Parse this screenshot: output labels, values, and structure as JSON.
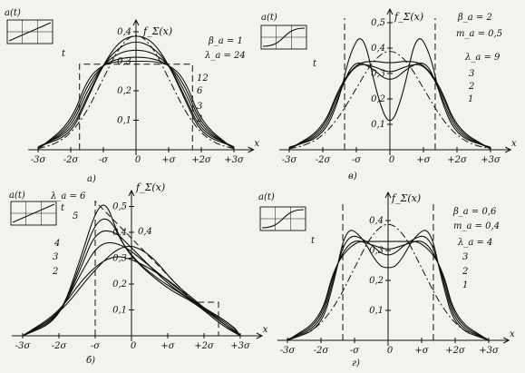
{
  "chart_data": [
    {
      "id": "a",
      "type": "line",
      "panel_label": "a)",
      "ylabel": "f_Σ(x)",
      "xlabel": "x",
      "inset": {
        "title": "a(t)",
        "xlabel": "t",
        "shape": "linear"
      },
      "param_labels": [
        "β_a = 1",
        "λ_a = 24"
      ],
      "series_labels": [
        "12",
        "6",
        "3",
        "2"
      ],
      "x_ticks": [
        "-3σ",
        "-2σ",
        "-σ",
        "0",
        "+σ",
        "+2σ",
        "+3σ"
      ],
      "y_ticks": [
        "0,1",
        "0,2",
        "0,3",
        "0,4"
      ],
      "xlim": [
        -3,
        3
      ],
      "ylim": [
        0,
        0.45
      ],
      "uniform": {
        "height": 0.29,
        "from": -1.73,
        "to": 1.73
      },
      "series": [
        {
          "label": "24",
          "x": [
            -3.0,
            -2.0,
            -1.5,
            -1.0,
            -0.5,
            0.0,
            0.5,
            1.0,
            1.5,
            2.0,
            3.0
          ],
          "y": [
            0.01,
            0.05,
            0.17,
            0.29,
            0.37,
            0.39,
            0.37,
            0.29,
            0.17,
            0.05,
            0.01
          ]
        },
        {
          "label": "12",
          "x": [
            -3.0,
            -2.0,
            -1.5,
            -1.0,
            -0.5,
            0.0,
            0.5,
            1.0,
            1.5,
            2.0,
            3.0
          ],
          "y": [
            0.01,
            0.06,
            0.18,
            0.29,
            0.35,
            0.37,
            0.35,
            0.29,
            0.18,
            0.06,
            0.01
          ]
        },
        {
          "label": "6",
          "x": [
            -3.0,
            -2.0,
            -1.5,
            -1.0,
            -0.5,
            0.0,
            0.5,
            1.0,
            1.5,
            2.0,
            3.0
          ],
          "y": [
            0.005,
            0.07,
            0.2,
            0.29,
            0.33,
            0.34,
            0.33,
            0.29,
            0.2,
            0.07,
            0.005
          ]
        },
        {
          "label": "3",
          "x": [
            -3.0,
            -2.0,
            -1.5,
            -1.0,
            -0.5,
            0.0,
            0.5,
            1.0,
            1.5,
            2.0,
            3.0
          ],
          "y": [
            0.003,
            0.08,
            0.22,
            0.29,
            0.31,
            0.315,
            0.31,
            0.29,
            0.22,
            0.08,
            0.003
          ]
        },
        {
          "label": "2",
          "x": [
            -3.0,
            -2.0,
            -1.5,
            -1.0,
            -0.5,
            0.0,
            0.5,
            1.0,
            1.5,
            2.0,
            3.0
          ],
          "y": [
            0.002,
            0.09,
            0.24,
            0.29,
            0.3,
            0.3,
            0.3,
            0.29,
            0.24,
            0.09,
            0.002
          ]
        },
        {
          "label": "normal",
          "x": [
            -3.0,
            -2.5,
            -2.0,
            -1.5,
            -1.0,
            -0.5,
            0.0,
            0.5,
            1.0,
            1.5,
            2.0,
            2.5,
            3.0
          ],
          "y": [
            0.004,
            0.018,
            0.054,
            0.13,
            0.242,
            0.352,
            0.399,
            0.352,
            0.242,
            0.13,
            0.054,
            0.018,
            0.004
          ]
        }
      ]
    },
    {
      "id": "v",
      "type": "line",
      "panel_label": "в)",
      "ylabel": "f_Σ(x)",
      "xlabel": "x",
      "inset": {
        "title": "a(t)",
        "xlabel": "t",
        "shape": "s-curve"
      },
      "param_labels": [
        "β_a = 2",
        "m_a = 0,5",
        "λ_a = 9"
      ],
      "series_labels": [
        "3",
        "2",
        "1"
      ],
      "x_ticks": [
        "-3σ",
        "-2σ",
        "-σ",
        "0",
        "+σ",
        "+2σ",
        "+3σ"
      ],
      "y_ticks": [
        "0,1",
        "0,2",
        "0,3",
        "0,4",
        "0,5"
      ],
      "xlim": [
        -3,
        3
      ],
      "ylim": [
        0,
        0.55
      ],
      "series": [
        {
          "label": "9",
          "x": [
            -3.0,
            -2.0,
            -1.5,
            -1.2,
            -0.8,
            -0.4,
            0.0,
            0.4,
            0.8,
            1.2,
            1.5,
            2.0,
            3.0
          ],
          "y": [
            0.01,
            0.05,
            0.2,
            0.38,
            0.47,
            0.22,
            0.08,
            0.22,
            0.47,
            0.38,
            0.2,
            0.05,
            0.01
          ]
        },
        {
          "label": "3",
          "x": [
            -3.0,
            -2.0,
            -1.5,
            -1.1,
            -0.6,
            0.0,
            0.6,
            1.1,
            1.5,
            2.0,
            3.0
          ],
          "y": [
            0.005,
            0.06,
            0.22,
            0.35,
            0.33,
            0.26,
            0.33,
            0.35,
            0.22,
            0.06,
            0.005
          ]
        },
        {
          "label": "2",
          "x": [
            -3.0,
            -2.0,
            -1.5,
            -1.0,
            -0.5,
            0.0,
            0.5,
            1.0,
            1.5,
            2.0,
            3.0
          ],
          "y": [
            0.004,
            0.07,
            0.24,
            0.34,
            0.33,
            0.3,
            0.33,
            0.34,
            0.24,
            0.07,
            0.004
          ]
        },
        {
          "label": "1",
          "x": [
            -3.0,
            -2.0,
            -1.5,
            -1.0,
            -0.5,
            0.0,
            0.5,
            1.0,
            1.5,
            2.0,
            3.0
          ],
          "y": [
            0.003,
            0.08,
            0.25,
            0.34,
            0.35,
            0.34,
            0.35,
            0.34,
            0.25,
            0.08,
            0.003
          ]
        },
        {
          "label": "normal",
          "x": [
            -3.0,
            -2.5,
            -2.0,
            -1.5,
            -1.0,
            -0.5,
            0.0,
            0.5,
            1.0,
            1.5,
            2.0,
            2.5,
            3.0
          ],
          "y": [
            0.004,
            0.018,
            0.054,
            0.13,
            0.242,
            0.352,
            0.399,
            0.352,
            0.242,
            0.13,
            0.054,
            0.018,
            0.004
          ]
        }
      ]
    },
    {
      "id": "b",
      "type": "line",
      "panel_label": "б)",
      "ylabel": "f_Σ(x)",
      "xlabel": "x",
      "inset": {
        "title": "a(t)",
        "xlabel": "t",
        "shape": "linear-steps"
      },
      "param_labels": [
        "λ_a = 6"
      ],
      "series_labels": [
        "5",
        "4",
        "3",
        "2",
        "0,4"
      ],
      "x_ticks": [
        "-3σ",
        "-2σ",
        "-σ",
        "0",
        "+σ",
        "+2σ",
        "+3σ"
      ],
      "y_ticks": [
        "0,1",
        "0,2",
        "0,3",
        "0,4",
        "0,5"
      ],
      "xlim": [
        -3,
        3
      ],
      "ylim": [
        0,
        0.55
      ],
      "series": [
        {
          "label": "6",
          "x": [
            -3.0,
            -2.0,
            -1.4,
            -1.0,
            -0.7,
            -0.4,
            0.0,
            1.0,
            1.73,
            2.5,
            3.0
          ],
          "y": [
            0.0,
            0.06,
            0.3,
            0.48,
            0.52,
            0.4,
            0.3,
            0.18,
            0.13,
            0.04,
            0.0
          ]
        },
        {
          "label": "5",
          "x": [
            -3.0,
            -2.0,
            -1.4,
            -1.0,
            -0.6,
            -0.2,
            0.5,
            1.73,
            2.6,
            3.0
          ],
          "y": [
            0.0,
            0.06,
            0.28,
            0.44,
            0.46,
            0.34,
            0.24,
            0.13,
            0.04,
            0.0
          ]
        },
        {
          "label": "4",
          "x": [
            -3.0,
            -2.0,
            -1.4,
            -1.0,
            -0.5,
            0.0,
            1.0,
            1.73,
            2.6,
            3.0
          ],
          "y": [
            0.0,
            0.07,
            0.26,
            0.4,
            0.41,
            0.34,
            0.2,
            0.13,
            0.05,
            0.0
          ]
        },
        {
          "label": "3",
          "x": [
            -3.0,
            -2.0,
            -1.4,
            -0.9,
            -0.3,
            0.5,
            1.73,
            2.7,
            3.0
          ],
          "y": [
            0.0,
            0.08,
            0.24,
            0.36,
            0.36,
            0.27,
            0.13,
            0.05,
            0.0
          ]
        },
        {
          "label": "2",
          "x": [
            -3.0,
            -2.0,
            -1.3,
            -0.6,
            0.0,
            1.0,
            1.73,
            2.8,
            3.0
          ],
          "y": [
            0.0,
            0.09,
            0.23,
            0.31,
            0.3,
            0.22,
            0.13,
            0.04,
            0.0
          ]
        },
        {
          "label": "0,4",
          "x": [
            -3.0,
            -2.0,
            -1.0,
            -0.2,
            0.5,
            1.2,
            1.73,
            2.5,
            3.0
          ],
          "y": [
            0.0,
            0.08,
            0.26,
            0.36,
            0.32,
            0.2,
            0.14,
            0.05,
            0.0
          ]
        }
      ],
      "triangle": {
        "x": [
          -1.0,
          1.73,
          2.4
        ],
        "y": [
          0.52,
          0.13,
          0.13
        ]
      }
    },
    {
      "id": "g",
      "type": "line",
      "panel_label": "г)",
      "ylabel": "f_Σ(x)",
      "xlabel": "x",
      "inset": {
        "title": "a(t)",
        "xlabel": "t",
        "shape": "s-curve"
      },
      "param_labels": [
        "β_a = 0,6",
        "m_a = 0,4",
        "λ_a = 4"
      ],
      "series_labels": [
        "3",
        "2",
        "1"
      ],
      "x_ticks": [
        "-3σ",
        "-2σ",
        "-σ",
        "0",
        "+σ",
        "+2σ",
        "+3σ"
      ],
      "y_ticks": [
        "0,1",
        "0,2",
        "0,3",
        "0,4"
      ],
      "xlim": [
        -3,
        3
      ],
      "ylim": [
        0,
        0.45
      ],
      "series": [
        {
          "label": "4",
          "x": [
            -3.0,
            -2.0,
            -1.6,
            -1.25,
            -0.8,
            -0.3,
            0.0,
            0.3,
            0.8,
            1.25,
            1.6,
            2.0,
            3.0
          ],
          "y": [
            0.0,
            0.04,
            0.2,
            0.38,
            0.35,
            0.25,
            0.24,
            0.25,
            0.35,
            0.38,
            0.2,
            0.04,
            0.0
          ]
        },
        {
          "label": "3",
          "x": [
            -3.0,
            -2.0,
            -1.6,
            -1.2,
            -0.6,
            0.0,
            0.6,
            1.2,
            1.6,
            2.0,
            3.0
          ],
          "y": [
            0.0,
            0.05,
            0.22,
            0.36,
            0.33,
            0.27,
            0.33,
            0.36,
            0.22,
            0.05,
            0.0
          ]
        },
        {
          "label": "2",
          "x": [
            -3.0,
            -2.0,
            -1.6,
            -1.1,
            -0.5,
            0.0,
            0.5,
            1.1,
            1.6,
            2.0,
            3.0
          ],
          "y": [
            0.0,
            0.06,
            0.24,
            0.34,
            0.32,
            0.3,
            0.32,
            0.34,
            0.24,
            0.06,
            0.0
          ]
        },
        {
          "label": "1",
          "x": [
            -3.0,
            -2.0,
            -1.6,
            -1.0,
            -0.5,
            0.0,
            0.5,
            1.0,
            1.6,
            2.0,
            3.0
          ],
          "y": [
            0.0,
            0.07,
            0.25,
            0.33,
            0.33,
            0.33,
            0.33,
            0.33,
            0.25,
            0.07,
            0.0
          ]
        },
        {
          "label": "normal",
          "x": [
            -3.0,
            -2.5,
            -2.0,
            -1.5,
            -1.0,
            -0.5,
            0.0,
            0.5,
            1.0,
            1.5,
            2.0,
            2.5,
            3.0
          ],
          "y": [
            0.004,
            0.018,
            0.054,
            0.13,
            0.242,
            0.352,
            0.399,
            0.352,
            0.242,
            0.13,
            0.054,
            0.018,
            0.004
          ]
        }
      ]
    }
  ]
}
